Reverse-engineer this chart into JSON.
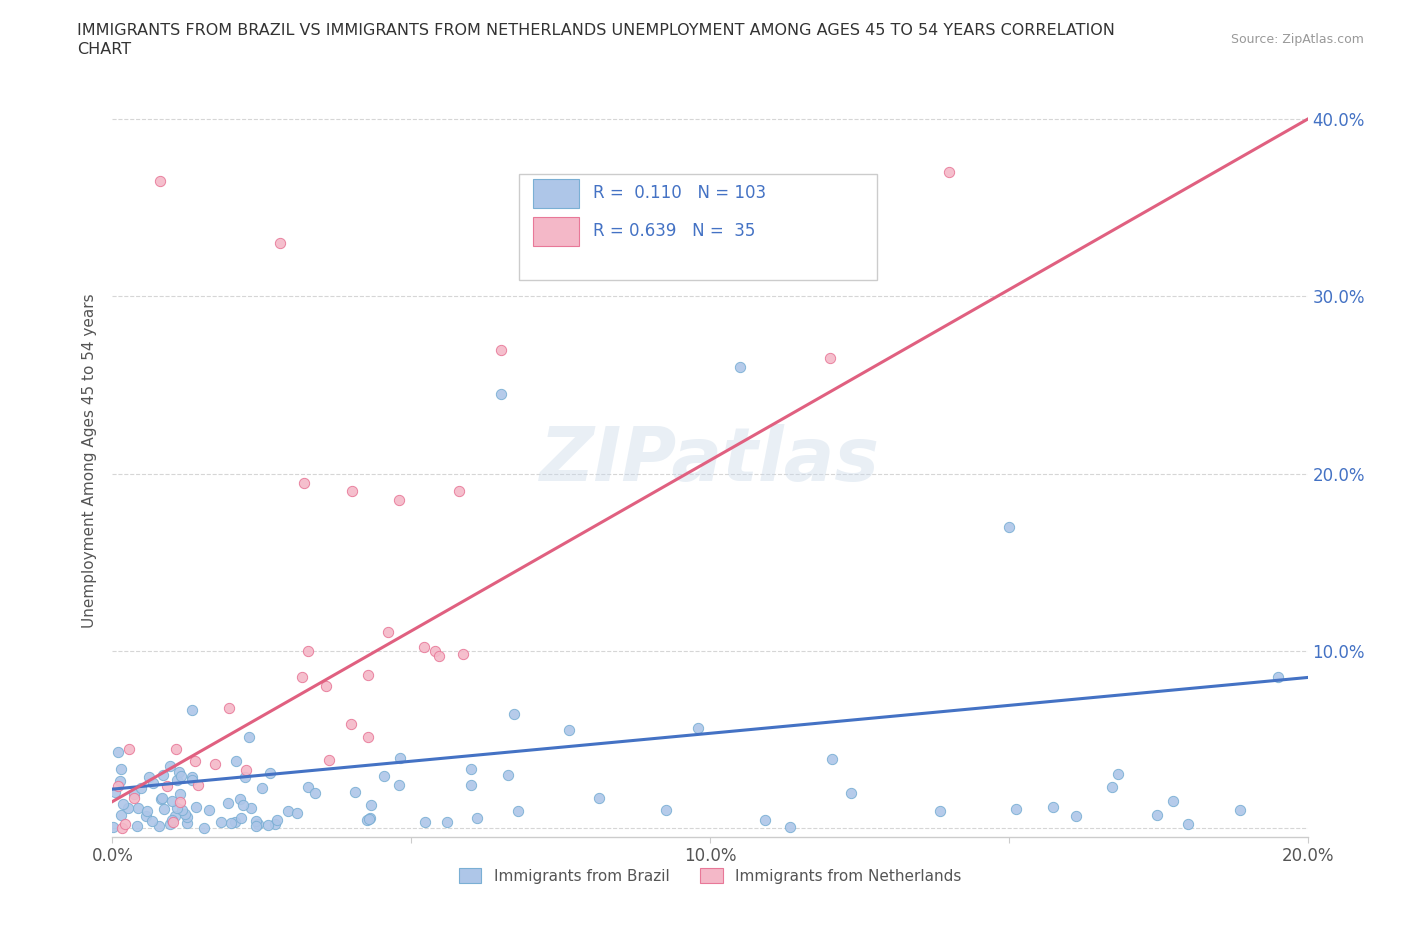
{
  "title_line1": "IMMIGRANTS FROM BRAZIL VS IMMIGRANTS FROM NETHERLANDS UNEMPLOYMENT AMONG AGES 45 TO 54 YEARS CORRELATION",
  "title_line2": "CHART",
  "source": "Source: ZipAtlas.com",
  "ylabel": "Unemployment Among Ages 45 to 54 years",
  "xlim": [
    0,
    0.2
  ],
  "ylim": [
    -0.005,
    0.42
  ],
  "xticks": [
    0.0,
    0.05,
    0.1,
    0.15,
    0.2
  ],
  "xticklabels": [
    "0.0%",
    "",
    "10.0%",
    "",
    "20.0%"
  ],
  "yticks": [
    0.0,
    0.1,
    0.2,
    0.3,
    0.4
  ],
  "yticklabels_right": [
    "",
    "10.0%",
    "20.0%",
    "30.0%",
    "40.0%"
  ],
  "brazil_color": "#aec6e8",
  "brazil_edge": "#7aafd4",
  "netherlands_color": "#f4b8c8",
  "netherlands_edge": "#e87898",
  "trendline_brazil_color": "#4472c4",
  "trendline_netherlands_color": "#e06080",
  "legend_brazil_label": "Immigrants from Brazil",
  "legend_netherlands_label": "Immigrants from Netherlands",
  "R_brazil": 0.11,
  "N_brazil": 103,
  "R_netherlands": 0.639,
  "N_netherlands": 35,
  "watermark": "ZIPatlas",
  "background_color": "#ffffff",
  "grid_color": "#cccccc",
  "axis_color": "#cccccc",
  "label_color": "#555555",
  "right_tick_color": "#4472c4"
}
